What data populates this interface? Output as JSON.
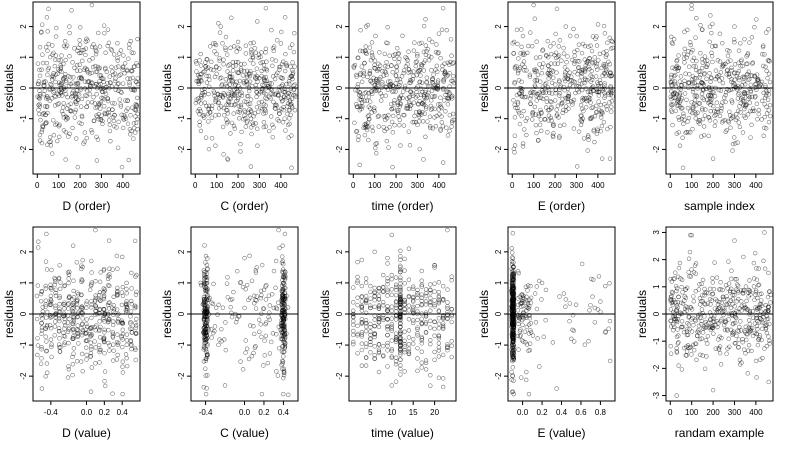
{
  "figure": {
    "panels": [
      {
        "xlabel": "D (order)",
        "ylabel": "residuals"
      },
      {
        "xlabel": "C (order)",
        "ylabel": "residuals"
      },
      {
        "xlabel": "time (order)",
        "ylabel": "residuals"
      },
      {
        "xlabel": "E (order)",
        "ylabel": "residuals"
      },
      {
        "xlabel": "sample index",
        "ylabel": "residuals"
      },
      {
        "xlabel": "D (value)",
        "ylabel": "residuals"
      },
      {
        "xlabel": "C (value)",
        "ylabel": "residuals"
      },
      {
        "xlabel": "time (value)",
        "ylabel": "residuals"
      },
      {
        "xlabel": "E (value)",
        "ylabel": "residuals"
      },
      {
        "xlabel": "randam example",
        "ylabel": "residuals"
      }
    ]
  },
  "chart_data": [
    {
      "type": "scatter",
      "xlabel": "D (order)",
      "ylabel": "residuals",
      "xlim": [
        -20,
        480
      ],
      "ylim": [
        -2.8,
        2.8
      ],
      "xticks": [
        "0",
        "100",
        "200",
        "300",
        "400"
      ],
      "yticks": [
        "-2",
        "-1",
        "0",
        "1",
        "2"
      ],
      "reference_line_y": 0,
      "grid": false,
      "n_points": 470,
      "x_distribution": "order",
      "x_range": [
        1,
        470
      ],
      "points": [
        [
          12,
          -0.6
        ],
        [
          45,
          2.3
        ],
        [
          60,
          -1.6
        ],
        [
          85,
          -1.2
        ],
        [
          110,
          0.9
        ],
        [
          150,
          2.0
        ],
        [
          165,
          -1.3
        ],
        [
          230,
          1.6
        ],
        [
          255,
          2.7
        ],
        [
          300,
          -0.9
        ],
        [
          330,
          1.9
        ],
        [
          380,
          -1.1
        ],
        [
          430,
          1.3
        ],
        [
          440,
          -1.4
        ]
      ]
    },
    {
      "type": "scatter",
      "xlabel": "C (order)",
      "ylabel": "residuals",
      "xlim": [
        -20,
        480
      ],
      "ylim": [
        -2.8,
        2.8
      ],
      "xticks": [
        "0",
        "100",
        "200",
        "300",
        "400"
      ],
      "yticks": [
        "-2",
        "-1",
        "0",
        "1",
        "2"
      ],
      "reference_line_y": 0,
      "grid": false,
      "n_points": 470,
      "x_distribution": "order",
      "x_range": [
        1,
        470
      ],
      "points": [
        [
          20,
          0.9
        ],
        [
          70,
          -0.8
        ],
        [
          150,
          -2.3
        ],
        [
          200,
          1.5
        ],
        [
          260,
          -1.0
        ],
        [
          330,
          2.6
        ],
        [
          360,
          -1.2
        ],
        [
          420,
          2.3
        ],
        [
          450,
          -2.6
        ]
      ]
    },
    {
      "type": "scatter",
      "xlabel": "time (order)",
      "ylabel": "residuals",
      "xlim": [
        -20,
        480
      ],
      "ylim": [
        -2.8,
        2.8
      ],
      "xticks": [
        "0",
        "100",
        "200",
        "300",
        "400"
      ],
      "yticks": [
        "-2",
        "-1",
        "0",
        "1",
        "2"
      ],
      "reference_line_y": 0,
      "grid": false,
      "n_points": 470,
      "x_distribution": "order",
      "x_range": [
        1,
        470
      ],
      "points": [
        [
          30,
          -2.5
        ],
        [
          60,
          2.0
        ],
        [
          110,
          -1.8
        ],
        [
          230,
          1.7
        ],
        [
          300,
          -1.2
        ],
        [
          420,
          2.6
        ],
        [
          450,
          -1.4
        ]
      ]
    },
    {
      "type": "scatter",
      "xlabel": "E (order)",
      "ylabel": "residuals",
      "xlim": [
        -20,
        480
      ],
      "ylim": [
        -2.8,
        2.8
      ],
      "xticks": [
        "0",
        "100",
        "200",
        "300",
        "400"
      ],
      "yticks": [
        "-2",
        "-1",
        "0",
        "1",
        "2"
      ],
      "reference_line_y": 0,
      "grid": false,
      "n_points": 470,
      "x_distribution": "order",
      "x_range": [
        1,
        470
      ],
      "points": [
        [
          50,
          -1.9
        ],
        [
          100,
          2.7
        ],
        [
          130,
          -1.2
        ],
        [
          250,
          2.0
        ],
        [
          330,
          -1.0
        ],
        [
          420,
          -2.3
        ],
        [
          440,
          1.2
        ]
      ]
    },
    {
      "type": "scatter",
      "xlabel": "sample index",
      "ylabel": "residuals",
      "xlim": [
        -20,
        480
      ],
      "ylim": [
        -2.8,
        2.8
      ],
      "xticks": [
        "0",
        "100",
        "200",
        "300",
        "400"
      ],
      "yticks": [
        "-2",
        "-1",
        "0",
        "1",
        "2"
      ],
      "reference_line_y": 0,
      "grid": false,
      "n_points": 470,
      "x_distribution": "order",
      "x_range": [
        1,
        470
      ],
      "points": [
        [
          60,
          -2.6
        ],
        [
          100,
          2.7
        ],
        [
          150,
          1.9
        ],
        [
          200,
          -2.3
        ],
        [
          300,
          2.0
        ],
        [
          380,
          -1.2
        ],
        [
          430,
          1.1
        ]
      ]
    },
    {
      "type": "scatter",
      "xlabel": "D (value)",
      "ylabel": "residuals",
      "xlim": [
        -0.6,
        0.6
      ],
      "ylim": [
        -2.8,
        2.8
      ],
      "xticks": [
        "-0.4",
        "0.0",
        "0.2",
        "0.4"
      ],
      "yticks": [
        "-2",
        "-1",
        "0",
        "1",
        "2"
      ],
      "reference_line_y": 0,
      "grid": false,
      "n_points": 470,
      "x_distribution": "uniform",
      "x_range": [
        -0.55,
        0.55
      ],
      "points": [
        [
          -0.5,
          -2.4
        ],
        [
          0.1,
          2.7
        ],
        [
          -0.15,
          2.2
        ],
        [
          0.05,
          -2.5
        ],
        [
          0.3,
          -1.5
        ],
        [
          0.45,
          1.0
        ],
        [
          0.1,
          0.1
        ],
        [
          0.11,
          0.2
        ],
        [
          0.12,
          0.0
        ]
      ]
    },
    {
      "type": "scatter",
      "xlabel": "C (value)",
      "ylabel": "residuals",
      "xlim": [
        -0.55,
        0.55
      ],
      "ylim": [
        -2.8,
        2.8
      ],
      "xticks": [
        "-0.4",
        "0.0",
        "0.2",
        "0.4"
      ],
      "yticks": [
        "-2",
        "-1",
        "0",
        "1",
        "2"
      ],
      "reference_line_y": 0,
      "grid": false,
      "n_points": 470,
      "x_distribution": "clusters",
      "clusters": [
        -0.4,
        0.4
      ],
      "points": [
        [
          -0.2,
          -2.3
        ],
        [
          0.35,
          2.7
        ],
        [
          0.45,
          -2.6
        ],
        [
          0.0,
          1.8
        ],
        [
          -0.45,
          1.0
        ],
        [
          0.4,
          1.0
        ]
      ]
    },
    {
      "type": "scatter",
      "xlabel": "time (value)",
      "ylabel": "residuals",
      "xlim": [
        0,
        25
      ],
      "ylim": [
        -2.8,
        2.8
      ],
      "xticks": [
        "5",
        "10",
        "15",
        "20"
      ],
      "yticks": [
        "-2",
        "-1",
        "0",
        "1",
        "2"
      ],
      "reference_line_y": 0,
      "grid": false,
      "n_points": 470,
      "x_distribution": "integers",
      "x_range": [
        1,
        24
      ],
      "points": [
        [
          6,
          2.0
        ],
        [
          10,
          -2.3
        ],
        [
          12,
          1.5
        ],
        [
          18,
          -1.5
        ],
        [
          23,
          2.7
        ],
        [
          24,
          1.2
        ]
      ]
    },
    {
      "type": "scatter",
      "xlabel": "E (value)",
      "ylabel": "residuals",
      "xlim": [
        -0.15,
        0.95
      ],
      "ylim": [
        -2.8,
        2.8
      ],
      "xticks": [
        "0.0",
        "0.2",
        "0.4",
        "0.6",
        "0.8"
      ],
      "yticks": [
        "-2",
        "-1",
        "0",
        "1",
        "2"
      ],
      "reference_line_y": 0,
      "grid": false,
      "n_points": 470,
      "x_distribution": "concentrated_low",
      "dense_x": -0.1,
      "points": [
        [
          -0.1,
          2.6
        ],
        [
          -0.1,
          -2.5
        ],
        [
          0.35,
          -2.4
        ],
        [
          0.8,
          0.4
        ],
        [
          0.85,
          0.9
        ],
        [
          0.2,
          1.0
        ],
        [
          0.55,
          0.3
        ]
      ]
    },
    {
      "type": "scatter",
      "xlabel": "randam example",
      "ylabel": "residuals",
      "xlim": [
        -20,
        480
      ],
      "ylim": [
        -3.2,
        3.2
      ],
      "xticks": [
        "0",
        "100",
        "200",
        "300",
        "400"
      ],
      "yticks": [
        "-3",
        "-2",
        "-1",
        "0",
        "1",
        "2",
        "3"
      ],
      "reference_line_y": 0,
      "grid": false,
      "n_points": 470,
      "x_distribution": "order",
      "x_range": [
        1,
        470
      ],
      "points": [
        [
          30,
          -3.0
        ],
        [
          100,
          2.9
        ],
        [
          200,
          -2.8
        ],
        [
          300,
          2.7
        ],
        [
          440,
          3.0
        ],
        [
          460,
          -2.5
        ]
      ]
    }
  ]
}
